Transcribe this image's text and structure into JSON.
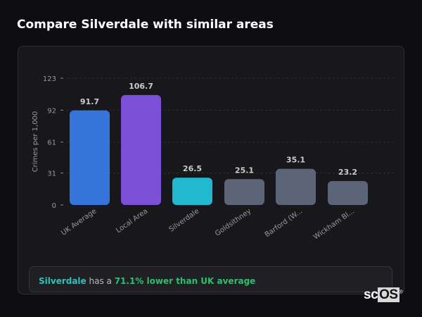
{
  "title": "Compare Silverdale with similar areas",
  "chart_data": {
    "type": "bar",
    "ylabel": "Crimes per 1,000",
    "yticks": [
      0,
      31,
      61,
      92,
      123
    ],
    "ylim": [
      0,
      123
    ],
    "grid": true,
    "categories": [
      "UK Average",
      "Local Area",
      "Silverdale",
      "Goldsithney",
      "Barford (W...",
      "Wickham Bl..."
    ],
    "values": [
      91.7,
      106.7,
      26.5,
      25.1,
      35.1,
      23.2
    ],
    "labels": [
      "91.7",
      "106.7",
      "26.5",
      "25.1",
      "35.1",
      "23.2"
    ],
    "colors": [
      "#3574db",
      "#7b4fd6",
      "#22b8cf",
      "#5b6577",
      "#5b6577",
      "#5b6577"
    ]
  },
  "summary": {
    "area": "Silverdale",
    "middle": " has a ",
    "result": "71.1% lower than UK average"
  },
  "logo": {
    "a": "sc",
    "b": "OS",
    "mark": "®"
  }
}
